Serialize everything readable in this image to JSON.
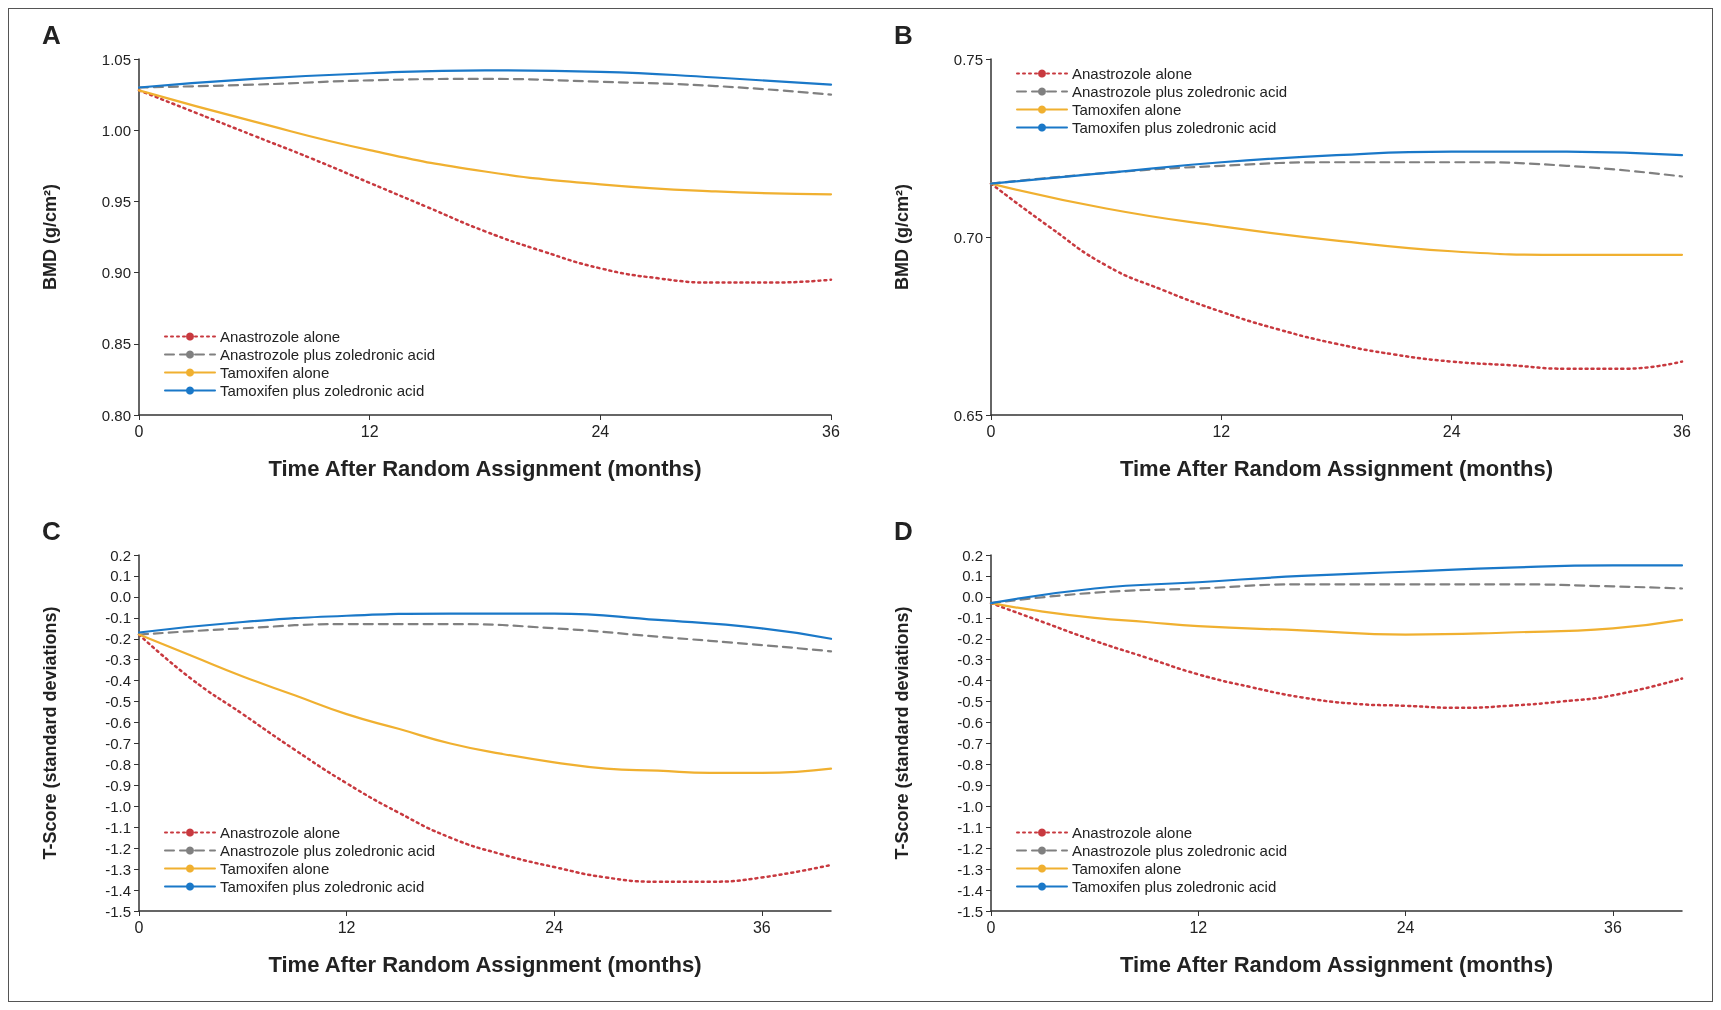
{
  "chart_data": [
    {
      "type": "line",
      "title": "A",
      "xlabel": "Time After Random Assignment (months)",
      "ylabel": "BMD (g/cm²)",
      "xlim": [
        0,
        36
      ],
      "xticks": [
        0,
        12,
        24,
        36
      ],
      "ylim": [
        0.8,
        1.05
      ],
      "yticks": [
        {
          "value": 0.8,
          "label": "0.80"
        },
        0.85,
        {
          "value": 0.9,
          "label": "0.90"
        },
        0.95,
        {
          "value": 1,
          "label": "1.00"
        },
        1.05
      ],
      "legend": "bottom left",
      "series": [
        {
          "name": "Anastrozole alone",
          "color": "#c8393f",
          "line_style": "dotted",
          "x": [
            0,
            3,
            6,
            9,
            12,
            15,
            18,
            21,
            24,
            27,
            30,
            33,
            36
          ],
          "values": [
            1.028,
            1.012,
            0.996,
            0.98,
            0.963,
            0.946,
            0.929,
            0.915,
            0.903,
            0.896,
            0.893,
            0.893,
            0.895
          ]
        },
        {
          "name": "Anastrozole plus zoledronic acid",
          "color": "#808080",
          "line_style": "dashed",
          "x": [
            0,
            6,
            12,
            18,
            24,
            30,
            36
          ],
          "values": [
            1.03,
            1.032,
            1.035,
            1.036,
            1.034,
            1.031,
            1.025
          ]
        },
        {
          "name": "Tamoxifen alone",
          "color": "#f0b030",
          "line_style": "solid",
          "x": [
            0,
            6,
            12,
            18,
            24,
            30,
            36
          ],
          "values": [
            1.028,
            1.006,
            0.986,
            0.971,
            0.962,
            0.957,
            0.955
          ]
        },
        {
          "name": "Tamoxifen plus zoledronic acid",
          "color": "#1a78c8",
          "line_style": "solid",
          "x": [
            0,
            6,
            12,
            18,
            24,
            30,
            36
          ],
          "values": [
            1.03,
            1.036,
            1.04,
            1.042,
            1.041,
            1.037,
            1.032
          ]
        }
      ]
    },
    {
      "type": "line",
      "title": "B",
      "xlabel": "Time After Random Assignment (months)",
      "ylabel": "BMD (g/cm²)",
      "xlim": [
        0,
        36
      ],
      "xticks": [
        0,
        12,
        24,
        36
      ],
      "ylim": [
        0.65,
        0.75
      ],
      "yticks": [
        0.65,
        {
          "value": 0.7,
          "label": "0.70"
        },
        0.75
      ],
      "legend": "top left",
      "series": [
        {
          "name": "Anastrozole alone",
          "color": "#c8393f",
          "line_style": "dotted",
          "x": [
            0,
            3,
            6,
            9,
            12,
            15,
            18,
            21,
            24,
            27,
            30,
            33,
            36
          ],
          "values": [
            0.715,
            0.703,
            0.692,
            0.685,
            0.679,
            0.674,
            0.67,
            0.667,
            0.665,
            0.664,
            0.663,
            0.663,
            0.665
          ]
        },
        {
          "name": "Anastrozole plus zoledronic acid",
          "color": "#808080",
          "line_style": "dashed",
          "x": [
            0,
            6,
            12,
            18,
            24,
            30,
            36
          ],
          "values": [
            0.715,
            0.718,
            0.72,
            0.721,
            0.721,
            0.72,
            0.717
          ]
        },
        {
          "name": "Tamoxifen alone",
          "color": "#f0b030",
          "line_style": "solid",
          "x": [
            0,
            6,
            12,
            18,
            24,
            30,
            36
          ],
          "values": [
            0.715,
            0.708,
            0.703,
            0.699,
            0.696,
            0.695,
            0.695
          ]
        },
        {
          "name": "Tamoxifen plus zoledronic acid",
          "color": "#1a78c8",
          "line_style": "solid",
          "x": [
            0,
            6,
            12,
            18,
            24,
            30,
            36
          ],
          "values": [
            0.715,
            0.718,
            0.721,
            0.723,
            0.724,
            0.724,
            0.723
          ]
        }
      ]
    },
    {
      "type": "line",
      "title": "C",
      "xlabel": "Time After Random Assignment (months)",
      "ylabel": "T-Score (standard deviations)",
      "xlim": [
        0,
        40
      ],
      "xticks": [
        0,
        12,
        24,
        36
      ],
      "ylim": [
        -1.5,
        0.2
      ],
      "yticks": [
        -1.5,
        -1.4,
        -1.3,
        -1.2,
        -1.1,
        {
          "value": -1,
          "label": "-1.0"
        },
        -0.9,
        -0.8,
        -0.7,
        -0.6,
        -0.5,
        -0.4,
        -0.3,
        -0.2,
        -0.1,
        {
          "value": 0,
          "label": "0.0"
        },
        0.1,
        0.2
      ],
      "legend": "bottom left",
      "series": [
        {
          "name": "Anastrozole alone",
          "color": "#c8393f",
          "line_style": "dotted",
          "x": [
            0,
            3,
            6,
            9,
            12,
            15,
            18,
            21,
            24,
            27,
            30,
            33,
            36,
            40
          ],
          "values": [
            -0.18,
            -0.39,
            -0.56,
            -0.73,
            -0.89,
            -1.03,
            -1.15,
            -1.23,
            -1.29,
            -1.34,
            -1.36,
            -1.36,
            -1.34,
            -1.28
          ]
        },
        {
          "name": "Anastrozole plus zoledronic acid",
          "color": "#808080",
          "line_style": "dashed",
          "x": [
            0,
            6,
            12,
            18,
            24,
            30,
            36,
            40
          ],
          "values": [
            -0.18,
            -0.15,
            -0.13,
            -0.13,
            -0.15,
            -0.19,
            -0.23,
            -0.26
          ]
        },
        {
          "name": "Tamoxifen alone",
          "color": "#f0b030",
          "line_style": "solid",
          "x": [
            0,
            3,
            6,
            9,
            12,
            15,
            18,
            21,
            24,
            27,
            30,
            33,
            36,
            40
          ],
          "values": [
            -0.18,
            -0.28,
            -0.38,
            -0.47,
            -0.56,
            -0.63,
            -0.7,
            -0.75,
            -0.79,
            -0.82,
            -0.83,
            -0.84,
            -0.84,
            -0.82
          ]
        },
        {
          "name": "Tamoxifen plus zoledronic acid",
          "color": "#1a78c8",
          "line_style": "solid",
          "x": [
            0,
            6,
            12,
            18,
            24,
            30,
            36,
            40
          ],
          "values": [
            -0.17,
            -0.12,
            -0.09,
            -0.08,
            -0.08,
            -0.11,
            -0.15,
            -0.2
          ]
        }
      ]
    },
    {
      "type": "line",
      "title": "D",
      "xlabel": "Time After Random Assignment (months)",
      "ylabel": "T-Score (standard deviations)",
      "xlim": [
        0,
        40
      ],
      "xticks": [
        0,
        12,
        24,
        36
      ],
      "ylim": [
        -1.5,
        0.2
      ],
      "yticks": [
        -1.5,
        -1.4,
        -1.3,
        -1.2,
        -1.1,
        {
          "value": -1,
          "label": "-1.0"
        },
        -0.9,
        -0.8,
        -0.7,
        -0.6,
        -0.5,
        -0.4,
        -0.3,
        -0.2,
        -0.1,
        {
          "value": 0,
          "label": "0.0"
        },
        0.1,
        0.2
      ],
      "legend": "bottom left",
      "series": [
        {
          "name": "Anastrozole alone",
          "color": "#c8393f",
          "line_style": "dotted",
          "x": [
            0,
            3,
            6,
            9,
            12,
            15,
            18,
            21,
            24,
            27,
            30,
            33,
            36,
            40
          ],
          "values": [
            -0.03,
            -0.12,
            -0.21,
            -0.29,
            -0.37,
            -0.43,
            -0.48,
            -0.51,
            -0.52,
            -0.53,
            -0.52,
            -0.5,
            -0.47,
            -0.39
          ]
        },
        {
          "name": "Anastrozole plus zoledronic acid",
          "color": "#808080",
          "line_style": "dashed",
          "x": [
            0,
            6,
            12,
            18,
            24,
            30,
            36,
            40
          ],
          "values": [
            -0.03,
            0.02,
            0.04,
            0.06,
            0.06,
            0.06,
            0.05,
            0.04
          ]
        },
        {
          "name": "Tamoxifen alone",
          "color": "#f0b030",
          "line_style": "solid",
          "x": [
            0,
            3,
            6,
            9,
            12,
            18,
            24,
            30,
            36,
            40
          ],
          "values": [
            -0.03,
            -0.07,
            -0.1,
            -0.12,
            -0.14,
            -0.16,
            -0.18,
            -0.17,
            -0.15,
            -0.11
          ]
        },
        {
          "name": "Tamoxifen plus zoledronic acid",
          "color": "#1a78c8",
          "line_style": "solid",
          "x": [
            0,
            6,
            12,
            18,
            24,
            30,
            36,
            40
          ],
          "values": [
            -0.03,
            0.04,
            0.07,
            0.1,
            0.12,
            0.14,
            0.15,
            0.15
          ]
        }
      ]
    }
  ]
}
